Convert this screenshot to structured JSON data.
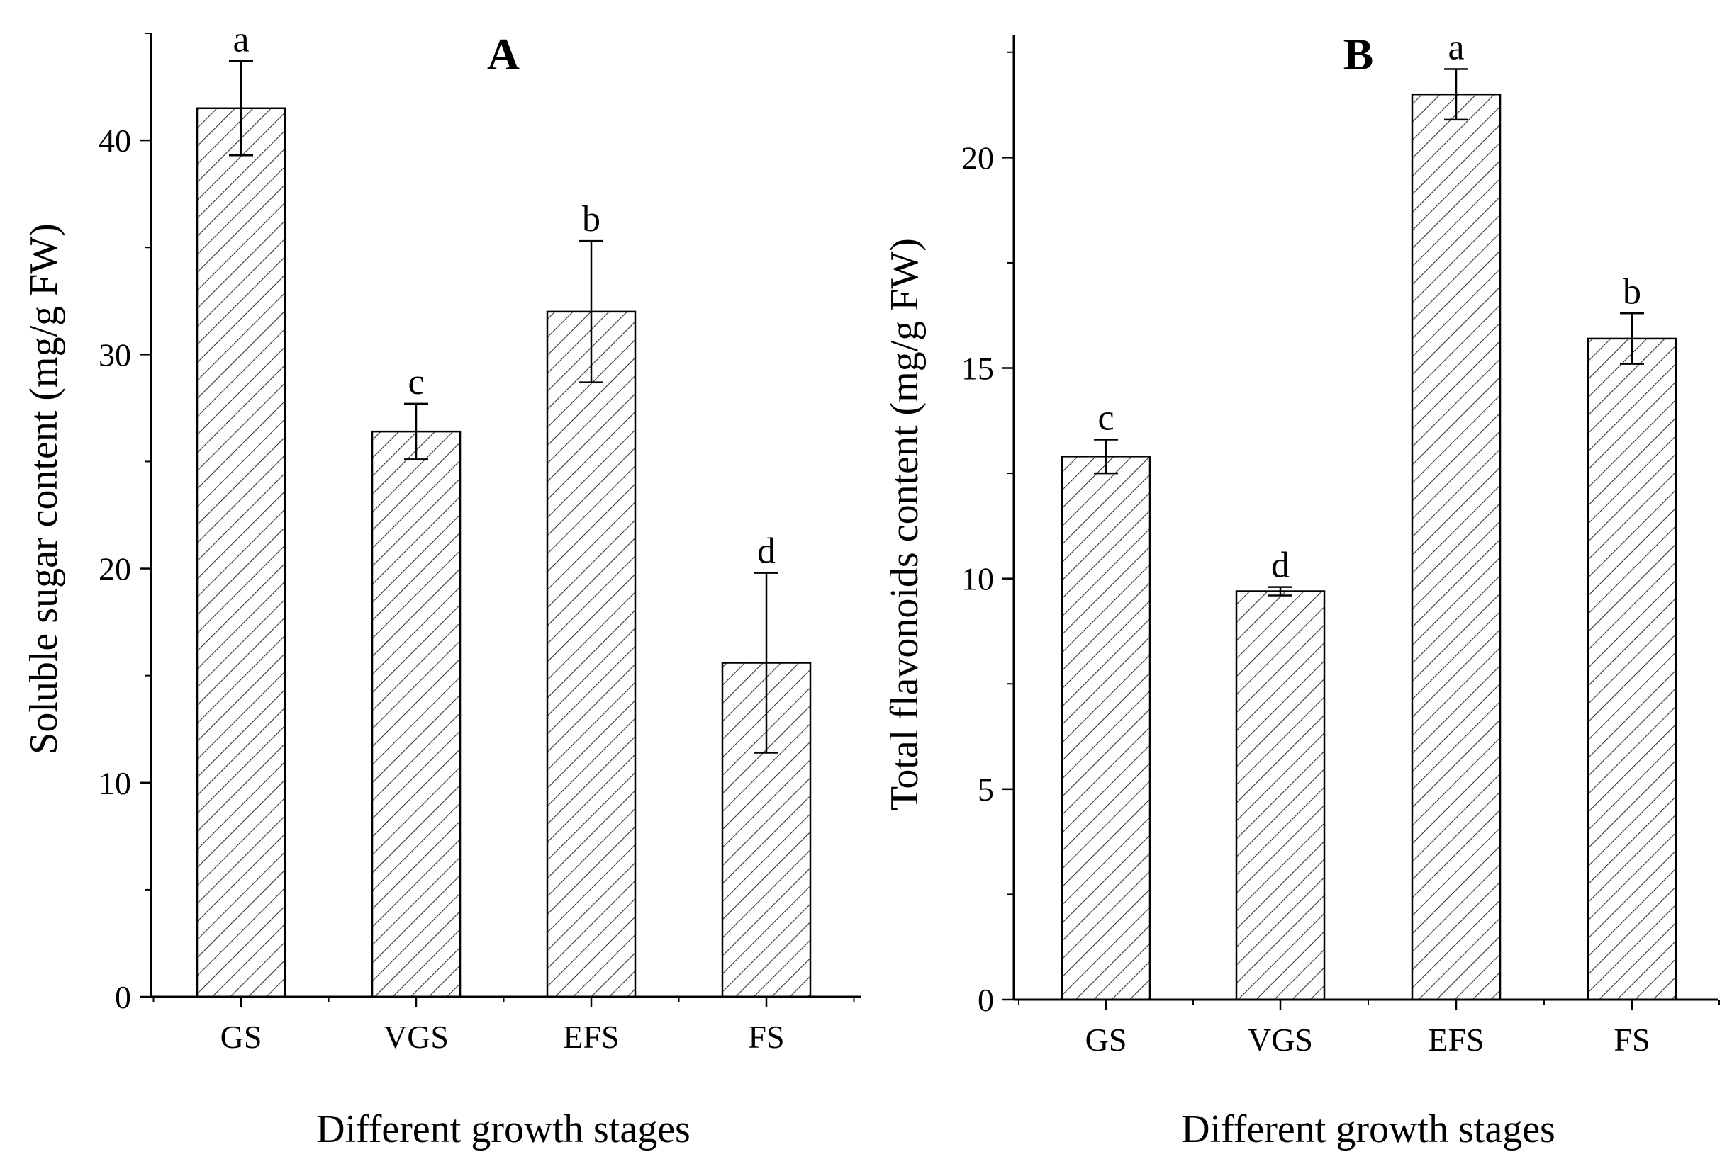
{
  "figure": {
    "panels": [
      {
        "id": "A",
        "panel_label": "A",
        "xlabel": "Different growth stages",
        "ylabel": "Soluble sugar content (mg/g FW)"
      },
      {
        "id": "B",
        "panel_label": "B",
        "xlabel": "Different growth stages",
        "ylabel": "Total flavonoids content (mg/g FW)"
      }
    ]
  },
  "chart_data": [
    {
      "type": "bar",
      "title": "A",
      "xlabel": "Different growth stages",
      "ylabel": "Soluble sugar content (mg/g FW)",
      "categories": [
        "GS",
        "VGS",
        "EFS",
        "FS"
      ],
      "values": [
        41.5,
        26.4,
        32.0,
        15.6
      ],
      "errors": [
        2.2,
        1.3,
        3.3,
        4.2
      ],
      "significance": [
        "a",
        "c",
        "b",
        "d"
      ],
      "ylim": [
        0,
        45
      ],
      "yticks": [
        0,
        10,
        20,
        30,
        40
      ],
      "bar_fill": "hatched",
      "grid": false
    },
    {
      "type": "bar",
      "title": "B",
      "xlabel": "Different growth stages",
      "ylabel": "Total flavonoids content (mg/g FW)",
      "categories": [
        "GS",
        "VGS",
        "EFS",
        "FS"
      ],
      "values": [
        12.9,
        9.7,
        21.5,
        15.7
      ],
      "errors": [
        0.4,
        0.1,
        0.6,
        0.6
      ],
      "significance": [
        "c",
        "d",
        "a",
        "b"
      ],
      "ylim": [
        0,
        22.9
      ],
      "yticks": [
        0,
        5,
        10,
        15,
        20
      ],
      "bar_fill": "hatched",
      "grid": false
    }
  ],
  "colors": {
    "axis": "#000000",
    "bar_fill": "#ffffff",
    "hatch": "#333333",
    "bar_stroke": "#000000"
  }
}
